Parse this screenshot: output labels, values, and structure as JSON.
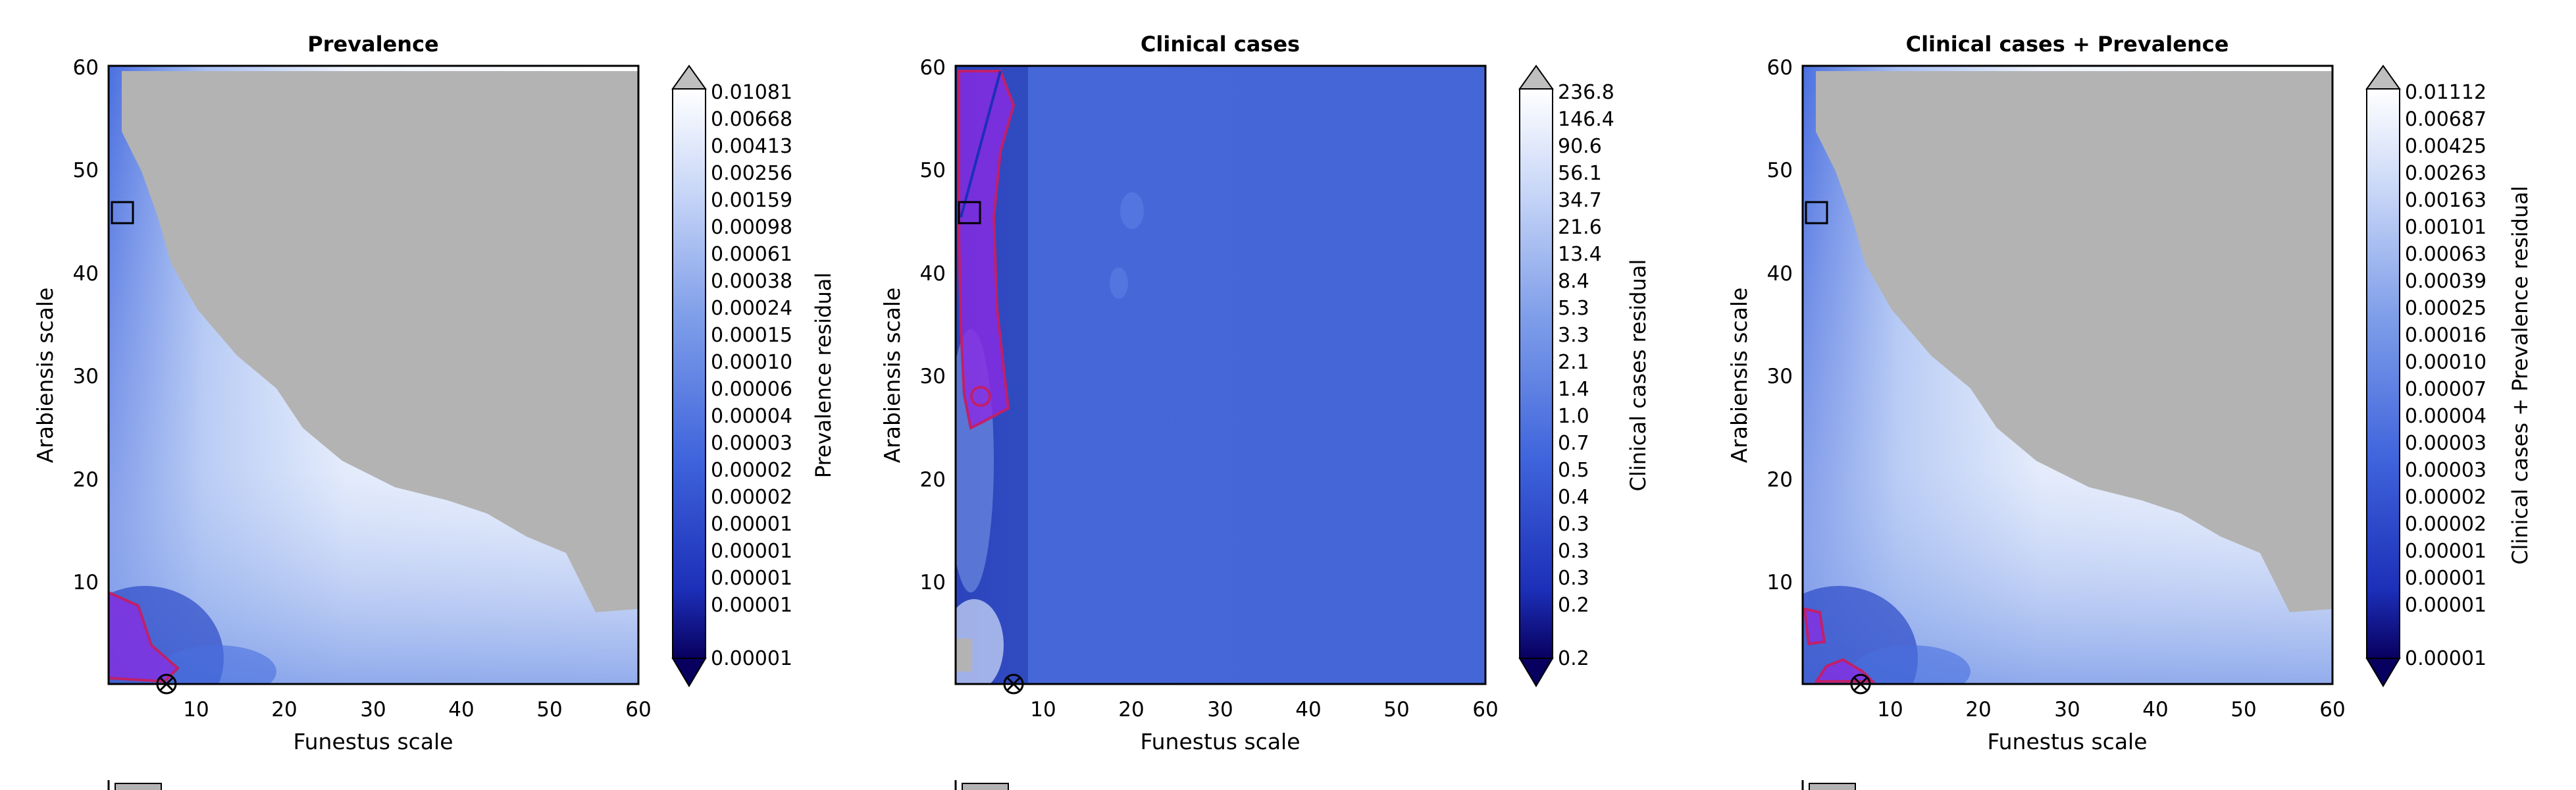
{
  "chart_data": [
    {
      "type": "heatmap",
      "title": "Prevalence",
      "xlabel": "Funestus scale",
      "ylabel": "Arabiensis scale",
      "xlim": [
        0,
        60
      ],
      "ylim": [
        0,
        60
      ],
      "xticks": [
        10,
        20,
        30,
        40,
        50,
        60
      ],
      "yticks": [
        10,
        20,
        30,
        40,
        50,
        60
      ],
      "colorbar": {
        "label": "Prevalence residual",
        "colormap": "white-to-navy (reversed blues)",
        "extend": "both",
        "levels": [
          "0.01081",
          "0.00668",
          "0.00413",
          "0.00256",
          "0.00159",
          "0.00098",
          "0.00061",
          "0.00038",
          "0.00024",
          "0.00015",
          "0.00010",
          "0.00006",
          "0.00004",
          "0.00003",
          "0.00002",
          "0.00002",
          "0.00001",
          "0.00001",
          "0.00001",
          "0.00001",
          "0.00001"
        ]
      },
      "masked_region_color": "#b3b3b3",
      "best_fit_marker": [
        7,
        0
      ],
      "square_marker": [
        1.5,
        46
      ]
    },
    {
      "type": "heatmap",
      "title": "Clinical cases",
      "xlabel": "Funestus scale",
      "ylabel": "Arabiensis scale",
      "xlim": [
        0,
        60
      ],
      "ylim": [
        0,
        60
      ],
      "xticks": [
        10,
        20,
        30,
        40,
        50,
        60
      ],
      "yticks": [
        10,
        20,
        30,
        40,
        50,
        60
      ],
      "colorbar": {
        "label": "Clinical cases residual",
        "colormap": "white-to-navy (reversed blues)",
        "extend": "both",
        "levels": [
          "236.8",
          "146.4",
          "90.6",
          "56.1",
          "34.7",
          "21.6",
          "13.4",
          "8.4",
          "5.3",
          "3.3",
          "2.1",
          "1.4",
          "1.0",
          "0.7",
          "0.5",
          "0.4",
          "0.3",
          "0.3",
          "0.3",
          "0.2",
          "0.2"
        ]
      },
      "masked_region_color": "#b3b3b3",
      "best_fit_marker": [
        7,
        0
      ],
      "square_marker": [
        1.5,
        46
      ]
    },
    {
      "type": "heatmap",
      "title": "Clinical cases + Prevalence",
      "xlabel": "Funestus scale",
      "ylabel": "Arabiensis scale",
      "xlim": [
        0,
        60
      ],
      "ylim": [
        0,
        60
      ],
      "xticks": [
        10,
        20,
        30,
        40,
        50,
        60
      ],
      "yticks": [
        10,
        20,
        30,
        40,
        50,
        60
      ],
      "colorbar": {
        "label": "Clinical cases + Prevalence residual",
        "colormap": "white-to-navy (reversed blues)",
        "extend": "both",
        "levels": [
          "0.01112",
          "0.00687",
          "0.00425",
          "0.00263",
          "0.00163",
          "0.00101",
          "0.00063",
          "0.00039",
          "0.00025",
          "0.00016",
          "0.00010",
          "0.00007",
          "0.00004",
          "0.00003",
          "0.00003",
          "0.00002",
          "0.00002",
          "0.00001",
          "0.00001",
          "0.00001",
          "0.00001"
        ]
      },
      "masked_region_color": "#b3b3b3",
      "best_fit_marker": [
        7,
        0
      ],
      "square_marker": [
        1.5,
        46
      ]
    }
  ]
}
